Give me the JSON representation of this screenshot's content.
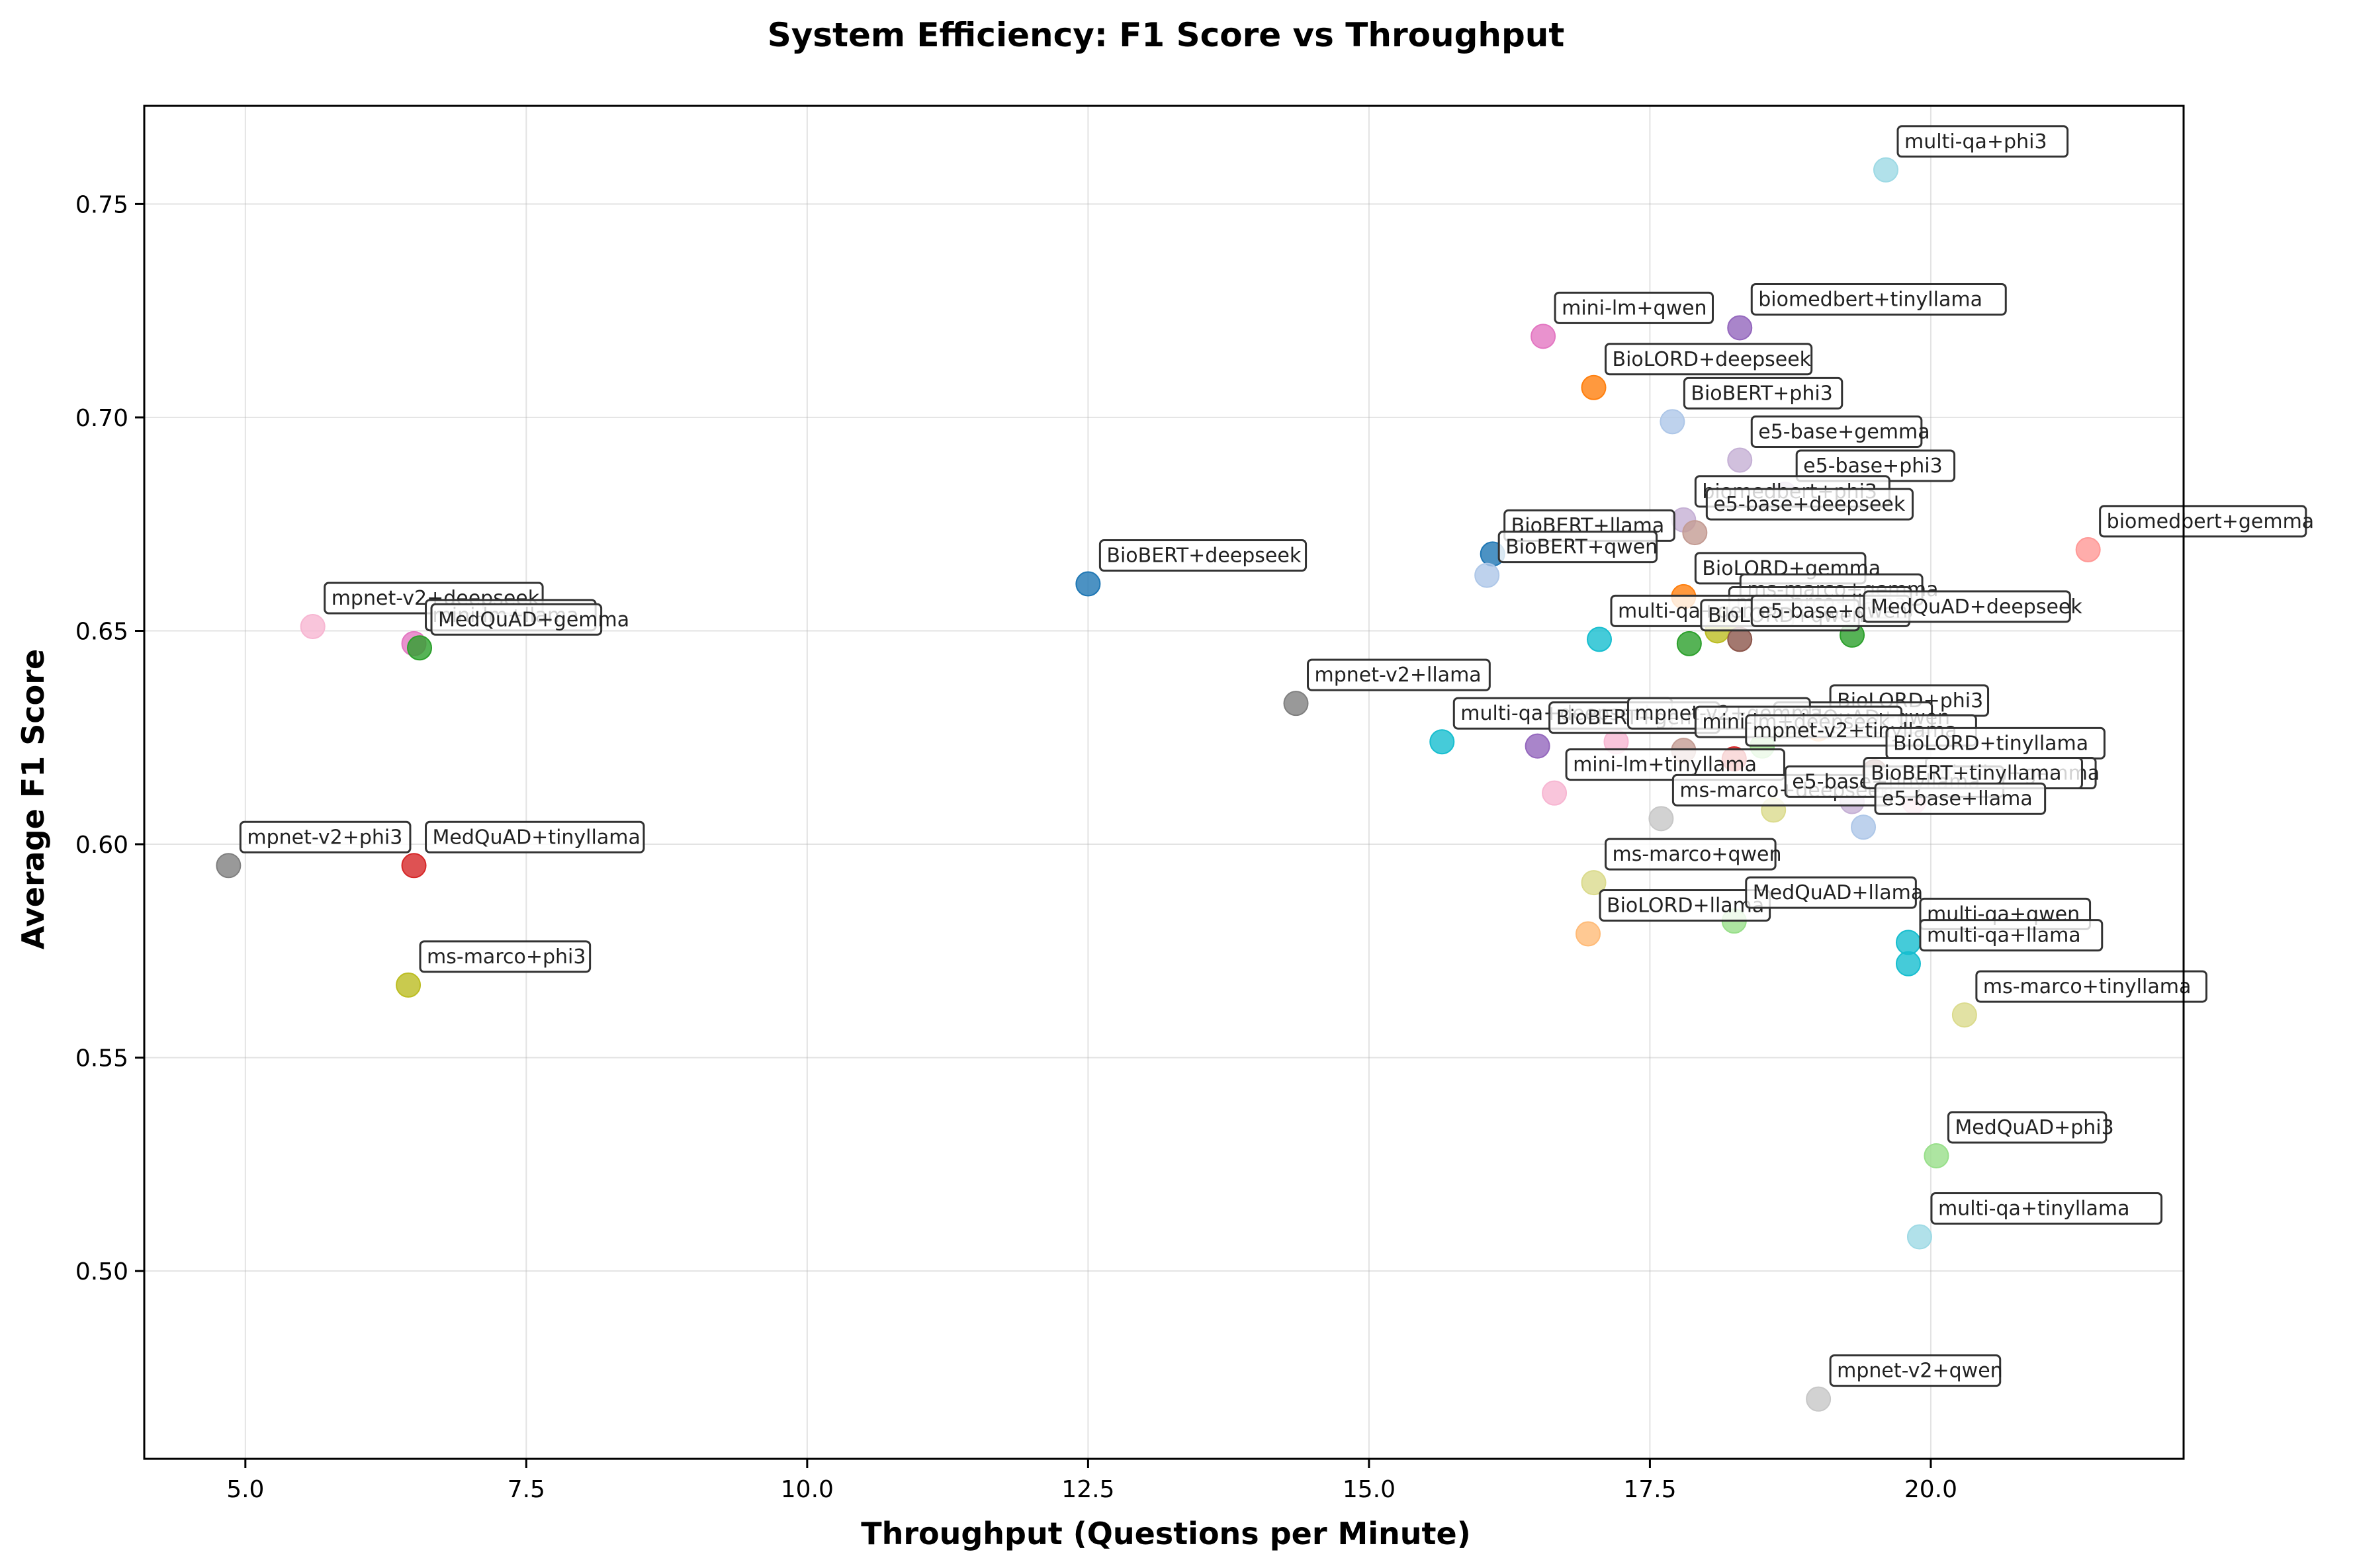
{
  "chart_data": {
    "type": "scatter",
    "title": "System Efficiency: F1 Score vs Throughput",
    "xlabel": "Throughput (Questions per Minute)",
    "ylabel": "Average F1 Score",
    "xlim": [
      4.1,
      22.25
    ],
    "ylim": [
      0.456,
      0.773
    ],
    "x_ticks": [
      "5.0",
      "7.5",
      "10.0",
      "12.5",
      "15.0",
      "17.5",
      "20.0"
    ],
    "y_ticks": [
      "0.50",
      "0.55",
      "0.60",
      "0.65",
      "0.70",
      "0.75"
    ],
    "grid": true,
    "points": [
      {
        "label": "multi-qa+phi3",
        "x": 19.6,
        "y": 0.758,
        "color": "#9edae5"
      },
      {
        "label": "biomedbert+tinyllama",
        "x": 18.3,
        "y": 0.721,
        "color": "#9467bd"
      },
      {
        "label": "mini-lm+qwen",
        "x": 16.55,
        "y": 0.719,
        "color": "#e377c2"
      },
      {
        "label": "BioLORD+deepseek",
        "x": 17.0,
        "y": 0.707,
        "color": "#ff7f0e"
      },
      {
        "label": "BioBERT+phi3",
        "x": 17.7,
        "y": 0.699,
        "color": "#aec7e8"
      },
      {
        "label": "e5-base+gemma",
        "x": 18.3,
        "y": 0.69,
        "color": "#c5b0d5"
      },
      {
        "label": "e5-base+phi3",
        "x": 18.7,
        "y": 0.682,
        "color": "#c5b0d5"
      },
      {
        "label": "biomedbert+phi3",
        "x": 17.8,
        "y": 0.676,
        "color": "#c5b0d5"
      },
      {
        "label": "e5-base+deepseek",
        "x": 17.9,
        "y": 0.673,
        "color": "#c49c94"
      },
      {
        "label": "biomedbert+gemma",
        "x": 21.4,
        "y": 0.669,
        "color": "#ff9896"
      },
      {
        "label": "BioBERT+llama",
        "x": 16.1,
        "y": 0.668,
        "color": "#1f77b4"
      },
      {
        "label": "BioBERT+qwen",
        "x": 16.05,
        "y": 0.663,
        "color": "#aec7e8"
      },
      {
        "label": "BioBERT+deepseek",
        "x": 12.5,
        "y": 0.661,
        "color": "#1f77b4"
      },
      {
        "label": "mpnet-v2+deepseek",
        "x": 5.6,
        "y": 0.651,
        "color": "#f7b6d2"
      },
      {
        "label": "mini-lm+llama",
        "x": 6.5,
        "y": 0.647,
        "color": "#e377c2"
      },
      {
        "label": "MedQuAD+gemma",
        "x": 6.55,
        "y": 0.646,
        "color": "#2ca02c"
      },
      {
        "label": "BioLORD+gemma",
        "x": 17.8,
        "y": 0.658,
        "color": "#ff7f0e"
      },
      {
        "label": "ms-marco+gemma",
        "x": 18.2,
        "y": 0.653,
        "color": "#bcbd22"
      },
      {
        "label": "ms-marco+llama",
        "x": 18.1,
        "y": 0.65,
        "color": "#bcbd22"
      },
      {
        "label": "multi-qa+gemma",
        "x": 17.05,
        "y": 0.648,
        "color": "#17becf"
      },
      {
        "label": "BioLORD+qwen",
        "x": 17.85,
        "y": 0.647,
        "color": "#2ca02c"
      },
      {
        "label": "e5-base+qwen",
        "x": 18.3,
        "y": 0.648,
        "color": "#8c564b"
      },
      {
        "label": "MedQuAD+deepseek",
        "x": 19.3,
        "y": 0.649,
        "color": "#2ca02c"
      },
      {
        "label": "mpnet-v2+llama",
        "x": 14.35,
        "y": 0.633,
        "color": "#7f7f7f"
      },
      {
        "label": "BioLORD+phi3",
        "x": 19.0,
        "y": 0.627,
        "color": "#ffbb78"
      },
      {
        "label": "MedQuAD+qwen",
        "x": 18.5,
        "y": 0.623,
        "color": "#98df8a"
      },
      {
        "label": "multi-qa+deepseek",
        "x": 15.65,
        "y": 0.624,
        "color": "#17becf"
      },
      {
        "label": "BioBERT+gemma",
        "x": 16.5,
        "y": 0.623,
        "color": "#9467bd"
      },
      {
        "label": "mpnet-v2+gemma",
        "x": 17.2,
        "y": 0.624,
        "color": "#f7b6d2"
      },
      {
        "label": "mini-lm+deepseek",
        "x": 17.8,
        "y": 0.622,
        "color": "#c49c94"
      },
      {
        "label": "mpnet-v2+tinyllama",
        "x": 18.25,
        "y": 0.62,
        "color": "#d62728"
      },
      {
        "label": "BioLORD+tinyllama",
        "x": 19.5,
        "y": 0.617,
        "color": "#8c564b"
      },
      {
        "label": "mini-lm+gemma",
        "x": 19.85,
        "y": 0.61,
        "color": "#f7b6d2"
      },
      {
        "label": "mini-lm+tinyllama",
        "x": 16.65,
        "y": 0.612,
        "color": "#f7b6d2"
      },
      {
        "label": "ms-marco+deepseek",
        "x": 17.6,
        "y": 0.606,
        "color": "#c7c7c7"
      },
      {
        "label": "e5-base+tinyllama",
        "x": 18.6,
        "y": 0.608,
        "color": "#dbdb8d"
      },
      {
        "label": "BioBERT+tinyllama",
        "x": 19.3,
        "y": 0.61,
        "color": "#c5b0d5"
      },
      {
        "label": "e5-base+llama",
        "x": 19.4,
        "y": 0.604,
        "color": "#aec7e8"
      },
      {
        "label": "mpnet-v2+phi3",
        "x": 4.85,
        "y": 0.595,
        "color": "#7f7f7f"
      },
      {
        "label": "MedQuAD+tinyllama",
        "x": 6.5,
        "y": 0.595,
        "color": "#d62728"
      },
      {
        "label": "ms-marco+qwen",
        "x": 17.0,
        "y": 0.591,
        "color": "#dbdb8d"
      },
      {
        "label": "BioLORD+llama",
        "x": 16.95,
        "y": 0.579,
        "color": "#ffbb78"
      },
      {
        "label": "MedQuAD+llama",
        "x": 18.25,
        "y": 0.582,
        "color": "#98df8a"
      },
      {
        "label": "multi-qa+qwen",
        "x": 19.8,
        "y": 0.577,
        "color": "#17becf"
      },
      {
        "label": "multi-qa+llama",
        "x": 19.8,
        "y": 0.572,
        "color": "#17becf"
      },
      {
        "label": "ms-marco+phi3",
        "x": 6.45,
        "y": 0.567,
        "color": "#bcbd22"
      },
      {
        "label": "ms-marco+tinyllama",
        "x": 20.3,
        "y": 0.56,
        "color": "#dbdb8d"
      },
      {
        "label": "MedQuAD+phi3",
        "x": 20.05,
        "y": 0.527,
        "color": "#98df8a"
      },
      {
        "label": "multi-qa+tinyllama",
        "x": 19.9,
        "y": 0.508,
        "color": "#9edae5"
      },
      {
        "label": "mpnet-v2+qwen",
        "x": 19.0,
        "y": 0.47,
        "color": "#c7c7c7"
      }
    ]
  }
}
